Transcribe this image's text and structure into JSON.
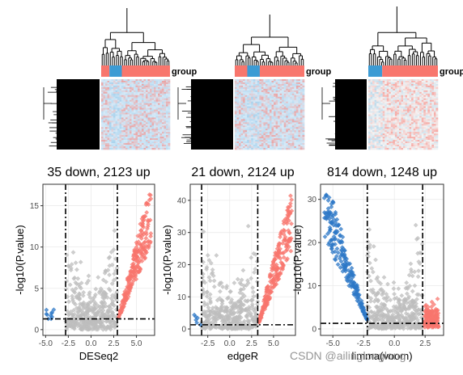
{
  "watermark": "CSDN @ailinglonglong",
  "chart_data": [
    {
      "type": "heatmap",
      "panel": "DESeq2",
      "annotation_label": "group",
      "group_colors": [
        "#F8766D",
        "#3C9BD4",
        "#F8766D"
      ],
      "group_fractions": [
        0.12,
        0.18,
        0.7
      ],
      "low_color": "#3C9BD4",
      "mid_color": "#D6EAF8",
      "high_color": "#F8766D"
    },
    {
      "type": "heatmap",
      "panel": "edgeR",
      "annotation_label": "group",
      "group_colors": [
        "#F8766D",
        "#3C9BD4",
        "#F8766D"
      ],
      "group_fractions": [
        0.18,
        0.18,
        0.64
      ],
      "low_color": "#3C9BD4",
      "mid_color": "#D6EAF8",
      "high_color": "#F8766D"
    },
    {
      "type": "heatmap",
      "panel": "limma",
      "annotation_label": "group",
      "group_colors": [
        "#3C9BD4",
        "#F8766D"
      ],
      "group_fractions": [
        0.2,
        0.8
      ],
      "low_color": "#3C9BD4",
      "mid_color": "#F4F4F4",
      "high_color": "#F8766D"
    },
    {
      "type": "scatter",
      "title": "35 down, 2123 up",
      "xlabel": "DESeq2",
      "ylabel": "-log10(P.value)",
      "xlim": [
        -5.3,
        7.0
      ],
      "ylim": [
        -0.7,
        17.6
      ],
      "xticks": [
        -5.0,
        -2.5,
        0.0,
        2.5,
        5.0
      ],
      "xtick_labels": [
        "-5.0",
        "-2.5",
        "0.0",
        "2.5",
        "5.0"
      ],
      "yticks": [
        0,
        5,
        10,
        15
      ],
      "ytick_labels": [
        "0",
        "5",
        "10",
        "15"
      ],
      "vlines": [
        -2.8,
        2.9
      ],
      "hline": 1.3,
      "colors": {
        "down": "#2E78C7",
        "up": "#F8766D",
        "ns": "#BEBEBE"
      },
      "counts": {
        "down": 35,
        "up": 2123
      },
      "grid": true
    },
    {
      "type": "scatter",
      "title": "21 down, 2124 up",
      "xlabel": "edgeR",
      "ylabel": "-log10(P.value)",
      "xlim": [
        -4.5,
        7.5
      ],
      "ylim": [
        -2,
        45
      ],
      "xticks": [
        -2.5,
        0.0,
        2.5,
        5.0
      ],
      "xtick_labels": [
        "-2.5",
        "0.0",
        "2.5",
        "5.0"
      ],
      "yticks": [
        0,
        10,
        20,
        30,
        40
      ],
      "ytick_labels": [
        "0",
        "10",
        "20",
        "30",
        "40"
      ],
      "vlines": [
        -3.2,
        3.2
      ],
      "hline": 1.3,
      "colors": {
        "down": "#2E78C7",
        "up": "#F8766D",
        "ns": "#BEBEBE"
      },
      "counts": {
        "down": 21,
        "up": 2124
      },
      "grid": true
    },
    {
      "type": "scatter",
      "title": "814 down, 1248 up",
      "xlabel": "limma(voom)",
      "ylabel": "-log10(P.value)",
      "xlim": [
        -6.0,
        4.0
      ],
      "ylim": [
        -1.5,
        33.5
      ],
      "xticks": [
        -5.0,
        -2.5,
        0.0,
        2.5
      ],
      "xtick_labels": [
        "-5.0",
        "-2.5",
        "0.0",
        "2.5"
      ],
      "yticks": [
        0,
        10,
        20,
        30
      ],
      "ytick_labels": [
        "0",
        "10",
        "20",
        "30"
      ],
      "vlines": [
        -2.2,
        2.3
      ],
      "hline": 1.3,
      "colors": {
        "down": "#2E78C7",
        "up": "#F8766D",
        "ns": "#BEBEBE"
      },
      "counts": {
        "down": 814,
        "up": 1248
      },
      "grid": true
    }
  ]
}
